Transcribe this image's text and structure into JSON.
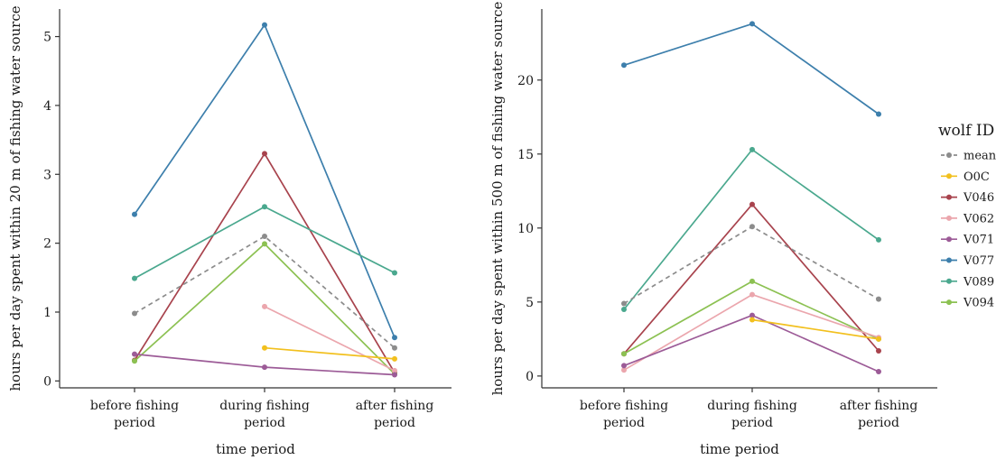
{
  "legend": {
    "title": "wolf ID",
    "placement": "right",
    "entries": [
      {
        "id": "mean",
        "label": "mean",
        "color": "#8c8c8c",
        "dashed": true
      },
      {
        "id": "O0C",
        "label": "O0C",
        "color": "#f2c01e",
        "dashed": false
      },
      {
        "id": "V046",
        "label": "V046",
        "color": "#a8434d",
        "dashed": false
      },
      {
        "id": "V062",
        "label": "V062",
        "color": "#eba6ad",
        "dashed": false
      },
      {
        "id": "V071",
        "label": "V071",
        "color": "#9c5b97",
        "dashed": false
      },
      {
        "id": "V077",
        "label": "V077",
        "color": "#3d7fac",
        "dashed": false
      },
      {
        "id": "V089",
        "label": "V089",
        "color": "#4aa88e",
        "dashed": false
      },
      {
        "id": "V094",
        "label": "V094",
        "color": "#8cc152",
        "dashed": false
      }
    ]
  },
  "chart_data": [
    {
      "type": "line",
      "xlabel": "time period",
      "ylabel": "hours per day spent within 20 m of fishing water source",
      "categories": [
        [
          "before fishing",
          "period"
        ],
        [
          "during fishing",
          "period"
        ],
        [
          "after fishing",
          "period"
        ]
      ],
      "ylim": [
        -0.1,
        5.4
      ],
      "yticks": [
        0,
        1,
        2,
        3,
        4,
        5
      ],
      "grid": false,
      "series": [
        {
          "name": "V077",
          "values": [
            2.42,
            5.17,
            0.63
          ]
        },
        {
          "name": "V046",
          "values": [
            0.3,
            3.3,
            0.12
          ]
        },
        {
          "name": "V089",
          "values": [
            1.49,
            2.53,
            1.57
          ]
        },
        {
          "name": "mean",
          "values": [
            0.98,
            2.1,
            0.48
          ]
        },
        {
          "name": "V094",
          "values": [
            0.29,
            1.99,
            0.1
          ]
        },
        {
          "name": "V062",
          "values": [
            null,
            1.08,
            0.15
          ]
        },
        {
          "name": "O0C",
          "values": [
            null,
            0.48,
            0.32
          ]
        },
        {
          "name": "V071",
          "values": [
            0.39,
            0.2,
            0.09
          ]
        }
      ]
    },
    {
      "type": "line",
      "xlabel": "time period",
      "ylabel": "hours per day spent within 500 m of fishing water source",
      "categories": [
        [
          "before fishing",
          "period"
        ],
        [
          "during fishing",
          "period"
        ],
        [
          "after fishing",
          "period"
        ]
      ],
      "ylim": [
        -0.8,
        24.8
      ],
      "yticks": [
        0,
        5,
        10,
        15,
        20
      ],
      "grid": false,
      "series": [
        {
          "name": "V077",
          "values": [
            21.0,
            23.8,
            17.7
          ]
        },
        {
          "name": "V089",
          "values": [
            4.5,
            15.3,
            9.2
          ]
        },
        {
          "name": "V046",
          "values": [
            1.5,
            11.6,
            1.7
          ]
        },
        {
          "name": "mean",
          "values": [
            4.9,
            10.1,
            5.2
          ]
        },
        {
          "name": "V094",
          "values": [
            1.5,
            6.4,
            2.5
          ]
        },
        {
          "name": "V062",
          "values": [
            0.4,
            5.5,
            2.6
          ]
        },
        {
          "name": "V071",
          "values": [
            0.7,
            4.1,
            0.3
          ]
        },
        {
          "name": "O0C",
          "values": [
            null,
            3.8,
            2.5
          ]
        }
      ]
    }
  ]
}
